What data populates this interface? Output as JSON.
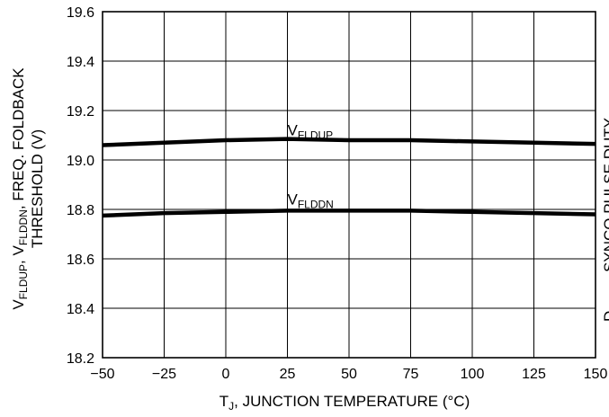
{
  "chart_data": {
    "type": "line",
    "xlabel": {
      "main": "T",
      "sub": "J",
      "rest": ", JUNCTION TEMPERATURE (°C)"
    },
    "ylabel": {
      "line1": [
        {
          "t": "V",
          "sub": false
        },
        {
          "t": "FLDUP",
          "sub": true
        },
        {
          "t": ", V",
          "sub": false
        },
        {
          "t": "FLDDN",
          "sub": true
        },
        {
          "t": ", FREQ. FOLDBACK",
          "sub": false
        }
      ],
      "line2": "THRESHOLD (V)"
    },
    "right_label_fragment": [
      {
        "t": "D",
        "sub": false
      },
      {
        "t": "SYNC",
        "sub": true
      },
      {
        "t": ", SYNCO PULSE DUTY",
        "sub": false
      }
    ],
    "xlim": [
      -50,
      150
    ],
    "ylim": [
      18.2,
      19.6
    ],
    "x_ticks": [
      -50,
      -25,
      0,
      25,
      50,
      75,
      100,
      125,
      150
    ],
    "x_tick_labels": [
      "−50",
      "−25",
      "0",
      "25",
      "50",
      "75",
      "100",
      "125",
      "150"
    ],
    "y_ticks": [
      18.2,
      18.4,
      18.6,
      18.8,
      19.0,
      19.2,
      19.4,
      19.6
    ],
    "y_tick_labels": [
      "18.2",
      "18.4",
      "18.6",
      "18.8",
      "19.0",
      "19.2",
      "19.4",
      "19.6"
    ],
    "grid": true,
    "series": [
      {
        "label_main": "V",
        "label_sub": "FLDUP",
        "label_x": 25,
        "label_y": 19.1,
        "x": [
          -50,
          -25,
          0,
          25,
          50,
          75,
          100,
          125,
          150
        ],
        "y": [
          19.06,
          19.07,
          19.08,
          19.085,
          19.08,
          19.08,
          19.075,
          19.07,
          19.065
        ]
      },
      {
        "label_main": "V",
        "label_sub": "FLDDN",
        "label_x": 25,
        "label_y": 18.82,
        "x": [
          -50,
          -25,
          0,
          25,
          50,
          75,
          100,
          125,
          150
        ],
        "y": [
          18.775,
          18.785,
          18.79,
          18.795,
          18.795,
          18.795,
          18.79,
          18.785,
          18.78
        ]
      }
    ]
  }
}
